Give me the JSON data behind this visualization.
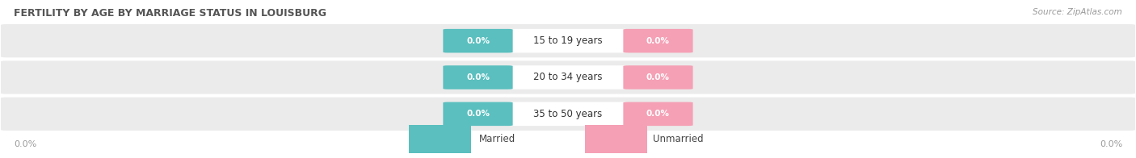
{
  "title": "FERTILITY BY AGE BY MARRIAGE STATUS IN LOUISBURG",
  "source": "Source: ZipAtlas.com",
  "categories": [
    "15 to 19 years",
    "20 to 34 years",
    "35 to 50 years"
  ],
  "married_values": [
    0.0,
    0.0,
    0.0
  ],
  "unmarried_values": [
    0.0,
    0.0,
    0.0
  ],
  "married_color": "#5BBFBF",
  "unmarried_color": "#F5A0B5",
  "row_bg_color": "#EBEBEB",
  "label_color_married": "#FFFFFF",
  "label_color_unmarried": "#FFFFFF",
  "category_label_color": "#333333",
  "title_color": "#555555",
  "source_color": "#999999",
  "axis_label_color": "#999999",
  "background_color": "#FFFFFF",
  "xlim_left_label": "0.0%",
  "xlim_right_label": "0.0%",
  "legend_married": "Married",
  "legend_unmarried": "Unmarried"
}
